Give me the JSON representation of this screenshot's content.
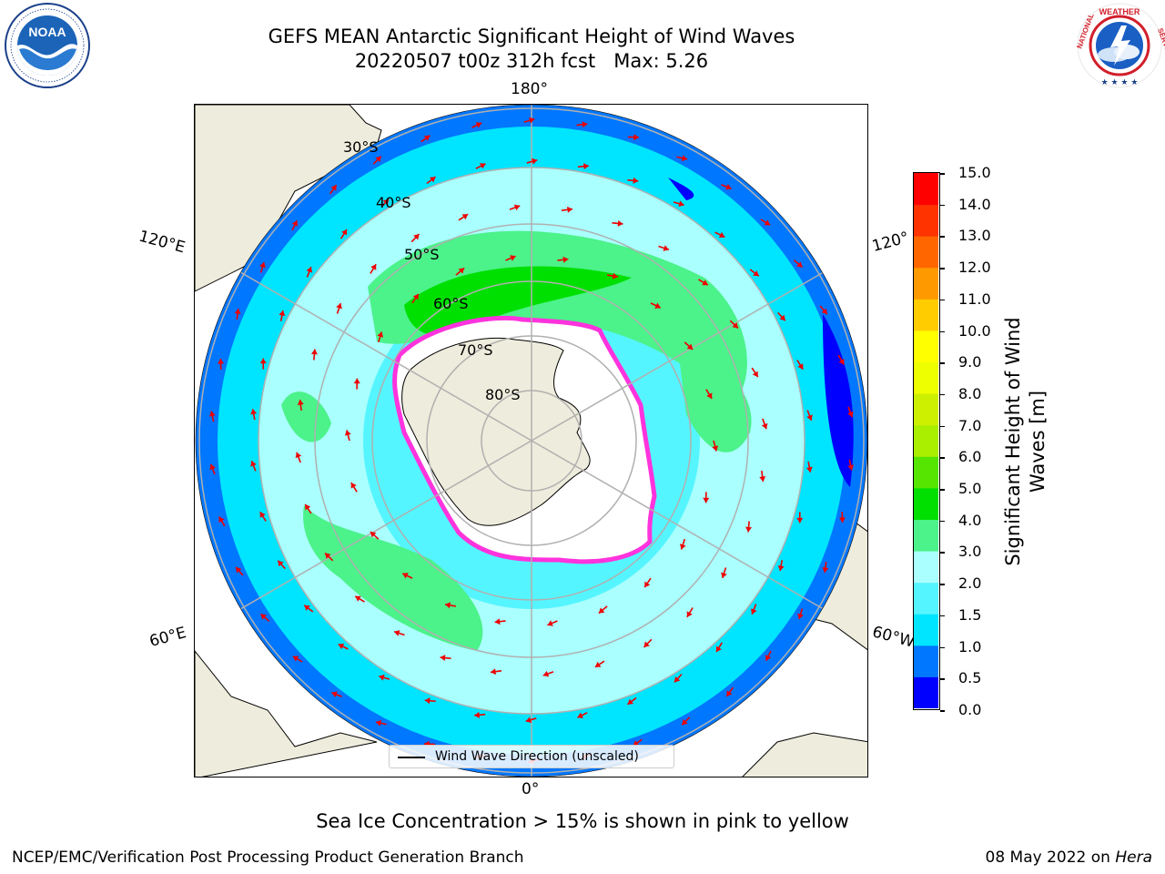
{
  "title": {
    "line1": "GEFS MEAN Antarctic Significant Height of Wind Waves",
    "line2": "20220507 t00z 312h fcst   Max: 5.26"
  },
  "map": {
    "lon_labels": {
      "top": "180°",
      "bottom": "0°",
      "left_upper": "120°E",
      "left_lower": "60°E",
      "right_upper": "120°",
      "right_lower": "60°W"
    },
    "lat_labels": [
      "30°S",
      "40°S",
      "50°S",
      "60°S",
      "70°S",
      "80°S"
    ],
    "colors": {
      "land": "#eeecdc",
      "ice": "#ffffff",
      "ice_edge": "#ff33dd",
      "arrow": "#ee0000",
      "grid": "#b0b0b0"
    }
  },
  "legend": {
    "label": "Wind Wave Direction (unscaled)"
  },
  "colorbar": {
    "label_line1": "Significant Height of Wind",
    "label_line2": "Waves [m]",
    "ticks": [
      "0.0",
      "0.5",
      "1.0",
      "1.5",
      "2.0",
      "3.0",
      "4.0",
      "5.0",
      "6.0",
      "7.0",
      "8.0",
      "9.0",
      "10.0",
      "11.0",
      "12.0",
      "13.0",
      "14.0",
      "15.0"
    ],
    "colors": [
      "#0000ff",
      "#0077ff",
      "#00e5ff",
      "#55f5ff",
      "#aaffff",
      "#4cf28a",
      "#00e000",
      "#55e500",
      "#aaee00",
      "#ccf000",
      "#eeff00",
      "#ffff00",
      "#ffcc00",
      "#ff9900",
      "#ff6600",
      "#ff3300",
      "#ff0000"
    ]
  },
  "subcaption": "Sea Ice Concentration > 15% is shown in pink to yellow",
  "footer": {
    "left": "NCEP/EMC/Verification Post Processing Product Generation Branch",
    "right_date": "08 May 2022 on ",
    "right_machine": "Hera"
  },
  "logos": {
    "noaa": "NOAA",
    "nws": "NATIONAL WEATHER SERVICE"
  }
}
